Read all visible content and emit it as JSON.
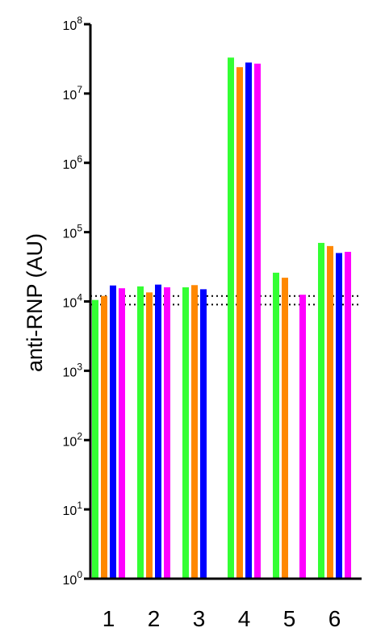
{
  "chart_data": {
    "type": "bar",
    "yscale": "log",
    "ylim": [
      1,
      100000000
    ],
    "ylabel": "anti-RNP (AU)",
    "xlabel": "",
    "title": "",
    "legend": "none",
    "grid": false,
    "categories": [
      "1",
      "2",
      "3",
      "4",
      "5",
      "6"
    ],
    "series_colors": [
      "#33ff33",
      "#ff8800",
      "#0000ff",
      "#ff00ff"
    ],
    "y_ticks": [
      {
        "value": 1,
        "base": "10",
        "exp": "0"
      },
      {
        "value": 10,
        "base": "10",
        "exp": "1"
      },
      {
        "value": 100,
        "base": "10",
        "exp": "2"
      },
      {
        "value": 1000,
        "base": "10",
        "exp": "3"
      },
      {
        "value": 10000,
        "base": "10",
        "exp": "4"
      },
      {
        "value": 100000,
        "base": "10",
        "exp": "5"
      },
      {
        "value": 1000000,
        "base": "10",
        "exp": "6"
      },
      {
        "value": 10000000,
        "base": "10",
        "exp": "7"
      },
      {
        "value": 100000000,
        "base": "10",
        "exp": "8"
      }
    ],
    "bars": [
      [
        10500,
        12000,
        17000,
        15500
      ],
      [
        16500,
        13500,
        17500,
        16000
      ],
      [
        16000,
        17200,
        15000,
        null
      ],
      [
        33000000,
        24000000,
        28000000,
        27000000
      ],
      [
        26000,
        22000,
        null,
        12500
      ],
      [
        70000,
        63000,
        50000,
        52000
      ]
    ],
    "reference_lines": [
      12000,
      9000
    ]
  }
}
